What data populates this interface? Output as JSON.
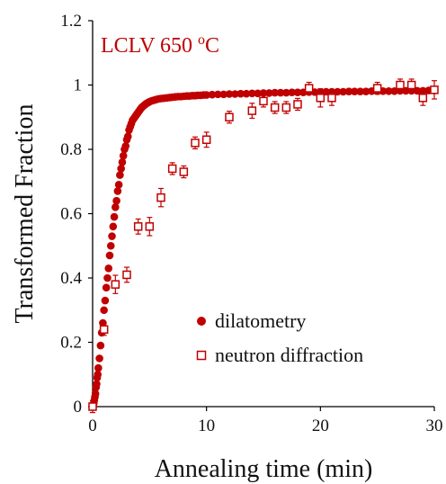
{
  "chart_data": {
    "type": "scatter",
    "title": "LCLV 650",
    "title_superscript": "o",
    "title_unit": "C",
    "xlabel": "Annealing time (min)",
    "ylabel": "Transformed Fraction",
    "xlim": [
      0,
      30
    ],
    "ylim": [
      0,
      1.2
    ],
    "x_ticks": [
      0,
      10,
      20,
      30
    ],
    "y_ticks": [
      0,
      0.2,
      0.4,
      0.6,
      0.8,
      1,
      1.2
    ],
    "x_tick_labels": [
      "0",
      "10",
      "20",
      "30"
    ],
    "y_tick_labels": [
      "0",
      "0.2",
      "0.4",
      "0.6",
      "0.8",
      "1",
      "1.2"
    ],
    "grid": false,
    "legend_position": "center-right",
    "colors": {
      "series": "#c00000",
      "axis": "#000000",
      "text": "#111111"
    },
    "series": [
      {
        "name": "dilatometry",
        "marker": "filled-circle",
        "x": [
          0.05,
          0.1,
          0.15,
          0.2,
          0.25,
          0.3,
          0.35,
          0.4,
          0.45,
          0.5,
          0.6,
          0.7,
          0.8,
          0.9,
          1.0,
          1.1,
          1.2,
          1.3,
          1.4,
          1.5,
          1.6,
          1.7,
          1.8,
          1.9,
          2.0,
          2.1,
          2.2,
          2.3,
          2.4,
          2.5,
          2.6,
          2.7,
          2.8,
          2.9,
          3.0,
          3.1,
          3.2,
          3.3,
          3.4,
          3.5,
          3.6,
          3.7,
          3.8,
          3.9,
          4.0,
          4.1,
          4.2,
          4.3,
          4.4,
          4.5,
          4.6,
          4.7,
          4.8,
          4.9,
          5.0,
          5.2,
          5.4,
          5.6,
          5.8,
          6.0,
          6.25,
          6.5,
          6.75,
          7.0,
          7.25,
          7.5,
          7.75,
          8.0,
          8.25,
          8.5,
          8.75,
          9.0,
          9.25,
          9.5,
          9.75,
          10.0,
          10.5,
          11.0,
          11.5,
          12.0,
          12.5,
          13.0,
          13.5,
          14.0,
          14.5,
          15.0,
          15.5,
          16.0,
          16.5,
          17.0,
          17.5,
          18.0,
          18.5,
          19.0,
          19.5,
          20.0,
          20.5,
          21.0,
          21.5,
          22.0,
          22.5,
          23.0,
          23.5,
          24.0,
          24.5,
          25.0,
          25.5,
          26.0,
          26.5,
          27.0,
          27.5,
          28.0,
          28.5,
          29.0,
          29.5,
          30.0
        ],
        "y": [
          0.0,
          0.01,
          0.02,
          0.03,
          0.04,
          0.06,
          0.07,
          0.09,
          0.1,
          0.12,
          0.15,
          0.19,
          0.23,
          0.26,
          0.3,
          0.33,
          0.37,
          0.4,
          0.43,
          0.47,
          0.5,
          0.53,
          0.56,
          0.59,
          0.62,
          0.64,
          0.67,
          0.69,
          0.72,
          0.74,
          0.76,
          0.78,
          0.8,
          0.81,
          0.83,
          0.84,
          0.86,
          0.87,
          0.88,
          0.89,
          0.895,
          0.9,
          0.905,
          0.91,
          0.915,
          0.92,
          0.925,
          0.93,
          0.933,
          0.936,
          0.939,
          0.942,
          0.944,
          0.946,
          0.948,
          0.951,
          0.953,
          0.955,
          0.957,
          0.958,
          0.959,
          0.96,
          0.961,
          0.962,
          0.963,
          0.964,
          0.964,
          0.965,
          0.966,
          0.966,
          0.967,
          0.967,
          0.968,
          0.968,
          0.969,
          0.969,
          0.97,
          0.971,
          0.971,
          0.972,
          0.972,
          0.973,
          0.973,
          0.974,
          0.974,
          0.975,
          0.975,
          0.976,
          0.976,
          0.976,
          0.977,
          0.977,
          0.977,
          0.978,
          0.978,
          0.978,
          0.979,
          0.979,
          0.979,
          0.979,
          0.98,
          0.98,
          0.98,
          0.98,
          0.981,
          0.981,
          0.981,
          0.981,
          0.981,
          0.982,
          0.982,
          0.982,
          0.982,
          0.982,
          0.983,
          0.983
        ]
      },
      {
        "name": "neutron diffraction",
        "marker": "open-square",
        "x": [
          0.0,
          1.0,
          2.0,
          3.0,
          4.0,
          5.0,
          6.0,
          7.0,
          8.0,
          9.0,
          10.0,
          12.0,
          14.0,
          15.0,
          16.0,
          17.0,
          18.0,
          19.0,
          20.0,
          21.0,
          25.0,
          27.0,
          28.0,
          29.0,
          30.0
        ],
        "y": [
          0.0,
          0.24,
          0.38,
          0.41,
          0.56,
          0.56,
          0.65,
          0.74,
          0.73,
          0.82,
          0.83,
          0.9,
          0.92,
          0.95,
          0.93,
          0.93,
          0.94,
          0.99,
          0.96,
          0.96,
          0.99,
          1.0,
          1.0,
          0.96,
          0.985
        ],
        "y_error": [
          0.01,
          0.01,
          0.02,
          0.015,
          0.015,
          0.02,
          0.02,
          0.01,
          0.01,
          0.01,
          0.015,
          0.01,
          0.015,
          0.01,
          0.01,
          0.01,
          0.01,
          0.01,
          0.02,
          0.015,
          0.01,
          0.01,
          0.01,
          0.015,
          0.02
        ]
      }
    ]
  }
}
